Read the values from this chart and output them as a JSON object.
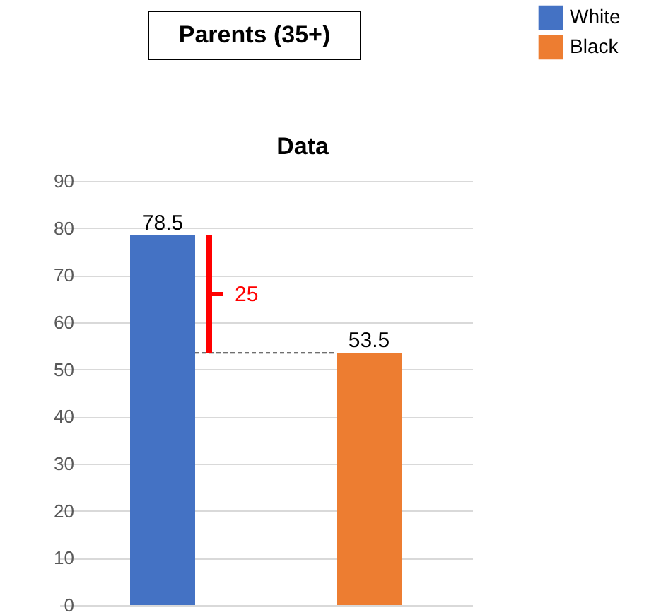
{
  "chart_data": {
    "type": "bar",
    "title": "Parents (35+)",
    "subtitle": "Data",
    "categories": [
      null,
      null
    ],
    "series": [
      {
        "name": "White",
        "color": "#4472c4",
        "values": [
          78.5,
          null
        ]
      },
      {
        "name": "Black",
        "color": "#ed7d31",
        "values": [
          null,
          53.5
        ]
      }
    ],
    "ylim": [
      0,
      90
    ],
    "yticks": [
      0,
      10,
      20,
      30,
      40,
      50,
      60,
      70,
      80,
      90
    ],
    "grid": "y",
    "legend": "top right",
    "tick_labels": "y",
    "data_labels": true,
    "ref_lines": [
      {
        "axis": "y",
        "value": 53.5,
        "color": "#404040",
        "line_style": "dashed"
      }
    ],
    "annotations": [
      "25"
    ]
  }
}
